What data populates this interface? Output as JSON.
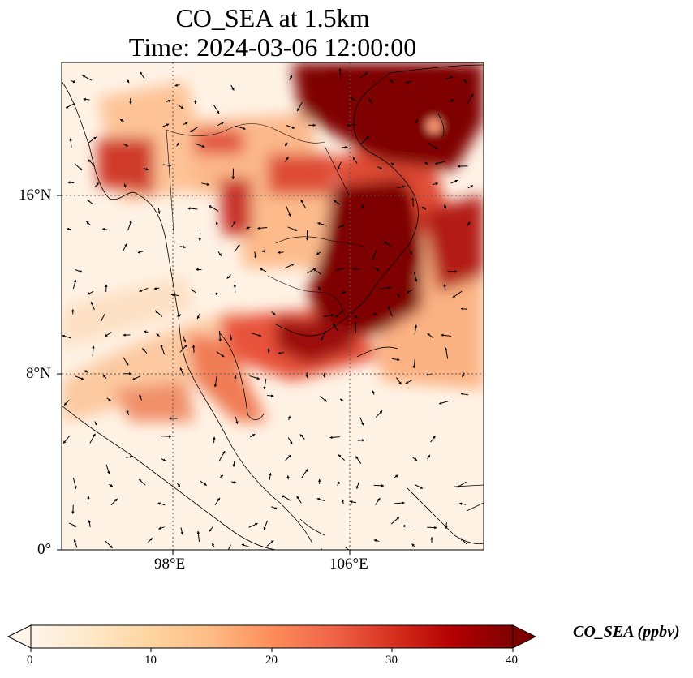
{
  "title": {
    "line1": "CO_SEA at 1.5km",
    "line2": "Time: 2024-03-06 12:00:00"
  },
  "map": {
    "lon_ticks": [
      "98°E",
      "106°E"
    ],
    "lat_ticks": [
      "16°N",
      "8°N",
      "0°"
    ],
    "lon_range": [
      93,
      112
    ],
    "lat_range": [
      0,
      22
    ],
    "gridlines": "dotted",
    "features": [
      "coastlines",
      "country-borders",
      "wind-vectors"
    ]
  },
  "colorbar": {
    "label": "CO_SEA (ppbv)",
    "ticks": [
      "0",
      "10",
      "20",
      "30",
      "40"
    ],
    "range": [
      0,
      40
    ],
    "extend": "both",
    "colormap": [
      "#fff5eb",
      "#fee6ce",
      "#fdd0a2",
      "#fdae6b",
      "#fd8d3c",
      "#f16913",
      "#d94801",
      "#a63603",
      "#7f2704"
    ]
  },
  "colors": {
    "low": "#fff5eb",
    "high": "#7f0000"
  }
}
